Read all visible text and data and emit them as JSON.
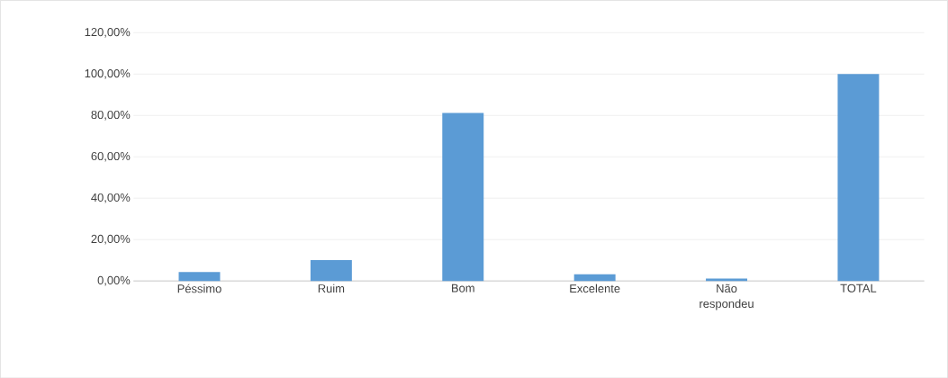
{
  "chart_data": {
    "type": "bar",
    "categories": [
      "Péssimo",
      "Ruim",
      "Bom",
      "Excelente",
      "Não respondeu",
      "TOTAL"
    ],
    "values": [
      4.3,
      10.1,
      81.2,
      3.2,
      1.2,
      100
    ],
    "color": "#5b9bd5",
    "ylim": [
      0,
      120
    ],
    "yticks": [
      {
        "value": 0,
        "label": "0,00%"
      },
      {
        "value": 20,
        "label": "20,00%"
      },
      {
        "value": 40,
        "label": "40,00%"
      },
      {
        "value": 60,
        "label": "60,00%"
      },
      {
        "value": 80,
        "label": "80,00%"
      },
      {
        "value": 100,
        "label": "100,00%"
      },
      {
        "value": 120,
        "label": "120,00%"
      }
    ],
    "grid": "y"
  }
}
